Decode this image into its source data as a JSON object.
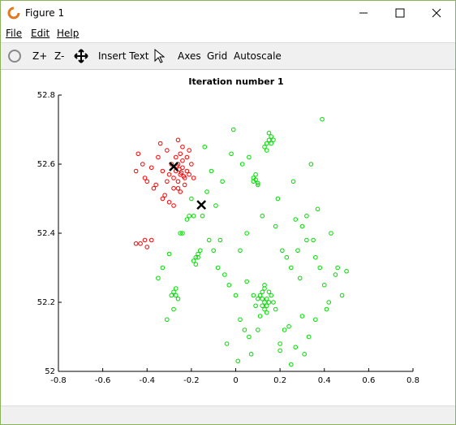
{
  "window": {
    "title": "Figure 1",
    "menu": [
      "File",
      "Edit",
      "Help"
    ],
    "toolbar": [
      "Z+",
      "Z-",
      "Insert Text",
      "Axes",
      "Grid",
      "Autoscale"
    ]
  },
  "chart_data": {
    "type": "scatter",
    "title": "Iteration number 1",
    "xlim": [
      -0.8,
      0.8
    ],
    "ylim": [
      52,
      52.8
    ],
    "xticks": [
      -0.8,
      -0.6,
      -0.4,
      -0.2,
      0,
      0.2,
      0.4,
      0.6,
      0.8
    ],
    "yticks": [
      52,
      52.2,
      52.4,
      52.6,
      52.8
    ],
    "series": [
      {
        "color": "#ff0000",
        "marker": "o",
        "x": [
          -0.27,
          -0.25,
          -0.26,
          -0.24,
          -0.23,
          -0.28,
          -0.26,
          -0.24,
          -0.22,
          -0.27,
          -0.25,
          -0.29,
          -0.21,
          -0.23,
          -0.26,
          -0.3,
          -0.24,
          -0.2,
          -0.28,
          -0.22,
          -0.31,
          -0.25,
          -0.19,
          -0.33,
          -0.35,
          -0.38,
          -0.4,
          -0.42,
          -0.44,
          -0.41,
          -0.37,
          -0.33,
          -0.3,
          -0.28,
          -0.34,
          -0.31,
          -0.26,
          -0.21,
          -0.36,
          -0.45,
          -0.43,
          -0.41,
          -0.45,
          -0.4,
          -0.38,
          -0.32,
          -0.255,
          -0.245,
          -0.265,
          -0.235
        ],
        "y": [
          52.58,
          52.57,
          52.6,
          52.59,
          52.56,
          52.56,
          52.55,
          52.61,
          52.58,
          52.62,
          52.63,
          52.6,
          52.57,
          52.54,
          52.53,
          52.57,
          52.65,
          52.6,
          52.53,
          52.62,
          52.55,
          52.52,
          52.56,
          52.58,
          52.62,
          52.59,
          52.55,
          52.6,
          52.63,
          52.56,
          52.53,
          52.5,
          52.49,
          52.48,
          52.66,
          52.64,
          52.67,
          52.64,
          52.54,
          52.58,
          52.37,
          52.38,
          52.37,
          52.36,
          52.38,
          52.51,
          52.585,
          52.575,
          52.595,
          52.565
        ]
      },
      {
        "color": "#00dd00",
        "marker": "o",
        "x": [
          0.13,
          0.12,
          0.14,
          0.11,
          0.15,
          0.13,
          0.1,
          0.16,
          0.12,
          0.14,
          0.09,
          0.17,
          0.13,
          0.11,
          0.15,
          0.12,
          0.14,
          0.08,
          0.18,
          0.13,
          0.15,
          0.14,
          0.16,
          0.13,
          0.17,
          0.15,
          0.14,
          0.16,
          0.09,
          0.08,
          0.1,
          0.09,
          0.08,
          0.1,
          -0.27,
          -0.28,
          -0.26,
          -0.27,
          -0.29,
          -0.18,
          -0.17,
          -0.19,
          -0.16,
          -0.18,
          -0.17,
          -0.35,
          -0.33,
          -0.3,
          -0.25,
          -0.22,
          -0.2,
          -0.15,
          -0.12,
          -0.1,
          -0.08,
          -0.05,
          -0.03,
          0,
          0.02,
          0.04,
          0.06,
          0.2,
          0.22,
          0.25,
          0.28,
          0.3,
          0.32,
          0.35,
          0.38,
          0.4,
          0.42,
          0.45,
          0.48,
          0.5,
          0.33,
          0.36,
          0.31,
          0.27,
          0.24,
          0.21,
          0.05,
          0.03,
          -0.02,
          -0.06,
          -0.09,
          -0.13,
          -0.21,
          -0.24,
          -0.31,
          -0.28,
          0.07,
          0.01,
          -0.04,
          0.19,
          0.26,
          0.34,
          0.39,
          0.43,
          0.37,
          0.29,
          0.23,
          0.18,
          0.06,
          -0.01,
          -0.11,
          -0.14,
          0.02,
          0.05,
          0.1,
          0.2,
          0.25,
          0.3,
          0.41,
          0.46,
          0.36,
          0.12,
          -0.07,
          -0.19,
          0.27,
          0.32
        ],
        "y": [
          52.2,
          52.21,
          52.19,
          52.22,
          52.2,
          52.18,
          52.21,
          52.22,
          52.23,
          52.17,
          52.19,
          52.2,
          52.24,
          52.16,
          52.23,
          52.19,
          52.21,
          52.22,
          52.18,
          52.25,
          52.67,
          52.66,
          52.68,
          52.65,
          52.67,
          52.69,
          52.64,
          52.66,
          52.555,
          52.56,
          52.545,
          52.57,
          52.55,
          52.54,
          52.22,
          52.23,
          52.21,
          52.24,
          52.22,
          52.33,
          52.34,
          52.32,
          52.35,
          52.31,
          52.33,
          52.27,
          52.3,
          52.34,
          52.4,
          52.44,
          52.5,
          52.45,
          52.38,
          52.35,
          52.3,
          52.28,
          52.25,
          52.22,
          52.15,
          52.12,
          52.1,
          52.08,
          52.12,
          52.3,
          52.35,
          52.42,
          52.45,
          52.38,
          52.3,
          52.25,
          52.2,
          52.28,
          52.22,
          52.29,
          52.1,
          52.15,
          52.05,
          52.07,
          52.13,
          52.35,
          52.4,
          52.6,
          52.63,
          52.55,
          52.48,
          52.52,
          52.45,
          52.4,
          52.15,
          52.18,
          52.05,
          52.03,
          52.08,
          52.5,
          52.55,
          52.6,
          52.73,
          52.4,
          52.47,
          52.27,
          52.33,
          52.42,
          52.62,
          52.7,
          52.58,
          52.65,
          52.35,
          52.26,
          52.12,
          52.06,
          52.02,
          52.16,
          52.18,
          52.3,
          52.33,
          52.45,
          52.38,
          52.45,
          52.44,
          52.38
        ]
      },
      {
        "color": "#000000",
        "marker": "x",
        "x": [
          -0.28,
          -0.155
        ],
        "y": [
          52.593,
          52.482
        ]
      }
    ]
  }
}
